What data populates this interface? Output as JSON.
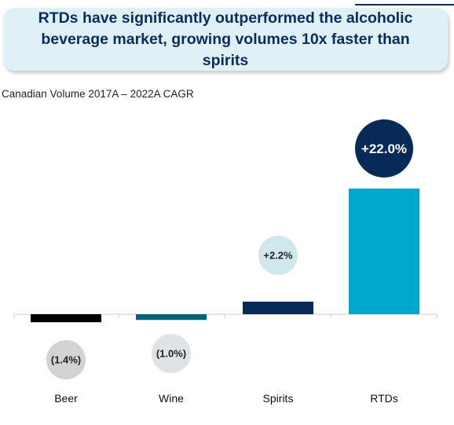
{
  "headline": "RTDs have significantly outperformed the alcoholic beverage market, growing volumes 10x faster than spirits",
  "chart_data": {
    "type": "bar",
    "title": "Canadian Volume 2017A – 2022A CAGR",
    "categories": [
      "Beer",
      "Wine",
      "Spirits",
      "RTDs"
    ],
    "values": [
      -1.4,
      -1.0,
      2.2,
      22.0
    ],
    "value_labels": [
      "(1.4%)",
      "(1.0%)",
      "+2.2%",
      "+22.0%"
    ],
    "bar_colors": [
      "#000000",
      "#006272",
      "#082a58",
      "#00a8d0"
    ],
    "bubble_colors": [
      "#d3d3d3",
      "#dfe3e6",
      "#d0e7ec",
      "#082a58"
    ],
    "bubble_text_colors": [
      "#222222",
      "#222222",
      "#222222",
      "#ffffff"
    ],
    "xlabel": "",
    "ylabel": "",
    "grid": false
  }
}
